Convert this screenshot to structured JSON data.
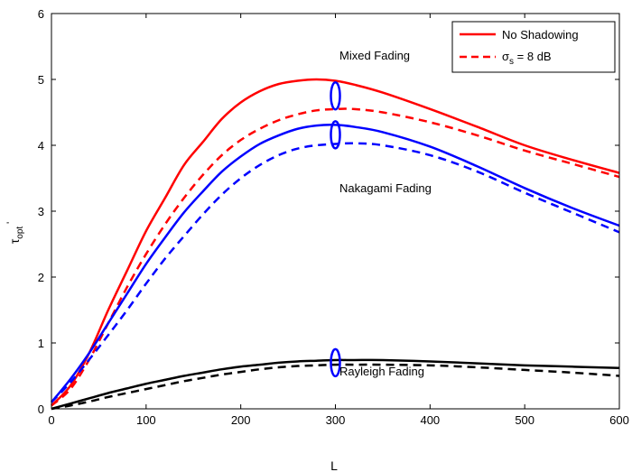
{
  "chart_data": {
    "type": "line",
    "xlabel": "L",
    "ylabel": "τ",
    "ylabel_sub": "opt",
    "ylabel_sup": "'",
    "xlim": [
      0,
      600
    ],
    "ylim": [
      0,
      6
    ],
    "xticks": [
      0,
      100,
      200,
      300,
      400,
      500,
      600
    ],
    "yticks": [
      0,
      1,
      2,
      3,
      4,
      5,
      6
    ],
    "grid": false,
    "legend_position": "top-right",
    "legend": {
      "solid": "No Shadowing",
      "dashed_sigma": "σ",
      "dashed_sub": "s",
      "dashed_rest": " = 8 dB"
    },
    "annotations": {
      "mixed": "Mixed Fading",
      "nakagami": "Nakagami Fading",
      "rayleigh": "Rayleigh Fading"
    },
    "series": [
      {
        "style": "solid",
        "color": "#ff0000",
        "group": "mixed",
        "x": [
          0,
          20,
          40,
          60,
          80,
          100,
          120,
          140,
          160,
          180,
          200,
          220,
          240,
          260,
          280,
          300,
          320,
          350,
          400,
          450,
          500,
          550,
          600
        ],
        "y": [
          0.05,
          0.35,
          0.85,
          1.5,
          2.1,
          2.7,
          3.2,
          3.7,
          4.05,
          4.4,
          4.65,
          4.82,
          4.93,
          4.98,
          5.0,
          4.98,
          4.92,
          4.8,
          4.55,
          4.28,
          4.0,
          3.78,
          3.58
        ]
      },
      {
        "style": "dashed",
        "color": "#ff0000",
        "group": "mixed",
        "x": [
          0,
          20,
          40,
          60,
          80,
          100,
          120,
          140,
          160,
          180,
          200,
          220,
          240,
          260,
          280,
          300,
          320,
          350,
          400,
          450,
          500,
          550,
          600
        ],
        "y": [
          0.05,
          0.3,
          0.75,
          1.3,
          1.85,
          2.35,
          2.8,
          3.2,
          3.55,
          3.85,
          4.08,
          4.25,
          4.38,
          4.47,
          4.53,
          4.55,
          4.55,
          4.5,
          4.35,
          4.15,
          3.92,
          3.72,
          3.52
        ]
      },
      {
        "style": "solid",
        "color": "#0000ff",
        "group": "nakagami",
        "x": [
          0,
          20,
          40,
          60,
          80,
          100,
          120,
          140,
          160,
          180,
          200,
          220,
          240,
          260,
          280,
          300,
          320,
          350,
          400,
          450,
          500,
          550,
          600
        ],
        "y": [
          0.1,
          0.45,
          0.85,
          1.3,
          1.75,
          2.2,
          2.6,
          2.98,
          3.3,
          3.6,
          3.83,
          4.02,
          4.15,
          4.25,
          4.3,
          4.31,
          4.28,
          4.2,
          3.98,
          3.68,
          3.35,
          3.05,
          2.78
        ]
      },
      {
        "style": "dashed",
        "color": "#0000ff",
        "group": "nakagami",
        "x": [
          0,
          20,
          40,
          60,
          80,
          100,
          120,
          140,
          160,
          180,
          200,
          220,
          240,
          260,
          280,
          300,
          320,
          350,
          400,
          450,
          500,
          550,
          600
        ],
        "y": [
          0.1,
          0.4,
          0.75,
          1.12,
          1.5,
          1.9,
          2.28,
          2.62,
          2.95,
          3.25,
          3.5,
          3.7,
          3.85,
          3.95,
          4.0,
          4.02,
          4.03,
          4.0,
          3.85,
          3.6,
          3.28,
          2.98,
          2.68
        ]
      },
      {
        "style": "solid",
        "color": "#000000",
        "group": "rayleigh",
        "x": [
          0,
          20,
          40,
          60,
          80,
          100,
          120,
          140,
          160,
          180,
          200,
          220,
          240,
          260,
          280,
          300,
          320,
          350,
          400,
          450,
          500,
          550,
          600
        ],
        "y": [
          0.0,
          0.08,
          0.16,
          0.24,
          0.31,
          0.38,
          0.44,
          0.5,
          0.55,
          0.6,
          0.64,
          0.67,
          0.7,
          0.72,
          0.73,
          0.74,
          0.74,
          0.74,
          0.72,
          0.69,
          0.66,
          0.64,
          0.62
        ]
      },
      {
        "style": "dashed",
        "color": "#000000",
        "group": "rayleigh",
        "x": [
          0,
          20,
          40,
          60,
          80,
          100,
          120,
          140,
          160,
          180,
          200,
          220,
          240,
          260,
          280,
          300,
          320,
          350,
          400,
          450,
          500,
          550,
          600
        ],
        "y": [
          0.0,
          0.05,
          0.11,
          0.18,
          0.24,
          0.3,
          0.36,
          0.42,
          0.47,
          0.52,
          0.56,
          0.6,
          0.63,
          0.65,
          0.66,
          0.67,
          0.67,
          0.67,
          0.66,
          0.63,
          0.59,
          0.55,
          0.5
        ]
      }
    ],
    "ellipse_groups": [
      {
        "group": "mixed",
        "x": 300,
        "y": 4.75
      },
      {
        "group": "nakagami",
        "x": 300,
        "y": 4.16
      },
      {
        "group": "rayleigh",
        "x": 300,
        "y": 0.7
      }
    ]
  }
}
